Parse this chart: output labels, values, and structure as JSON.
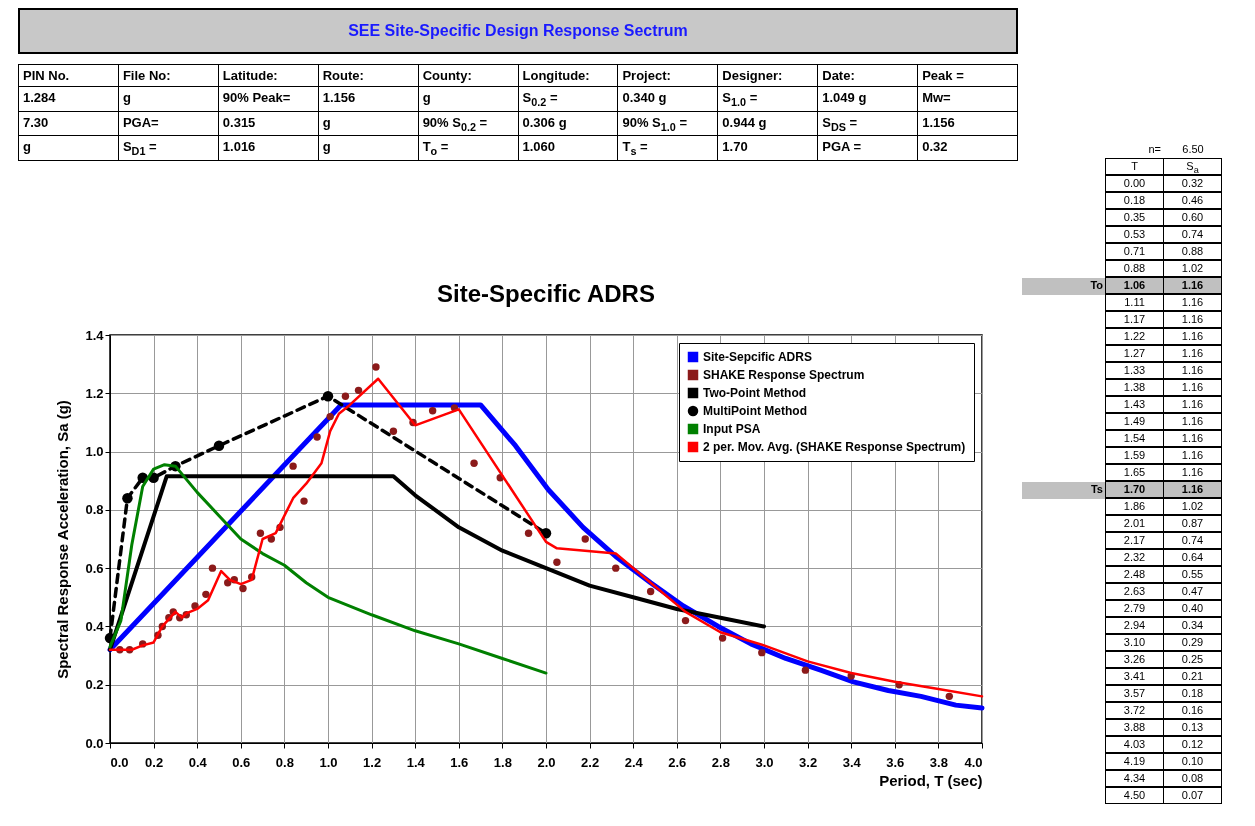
{
  "chart_data": [
    {
      "type": "other",
      "title": "SEE Site-Specific Design Response Sectrum",
      "annotations": [
        "PIN No.",
        "File No:",
        "Latitude:",
        "Route:",
        "County:",
        "Longitude:",
        "Project:",
        "Designer:",
        "Date:",
        "Peak =",
        "1.284",
        "g",
        "90% Peak=",
        "1.156",
        "g",
        "S$_{0.2}$ =",
        "0.340 g",
        "S$_{1.0}$ =",
        "1.049 g",
        "Mw=",
        "7.30",
        "PGA=",
        "0.315",
        "g",
        "90% S$_{0.2}$ =",
        "0.306 g",
        "90% S$_{1.0}$ =",
        "0.944 g",
        "S$_{DS}$ =",
        "1.156",
        "g",
        "S$_{D1}$ =",
        "1.016",
        "g",
        "T$_{o}$ =",
        "1.060",
        "T$_{s}$ =",
        "1.70",
        "PGA =",
        "0.32"
      ]
    },
    {
      "type": "line",
      "title": "Site-Specific ADRS",
      "xlabel": "Period, T (sec)",
      "ylabel": "Spectral Response Acceleration, Sa (g)",
      "xlim": [
        0,
        4
      ],
      "ylim": [
        0,
        1.4
      ],
      "xticks": [
        {
          "value": 0,
          "label": "0.0"
        },
        0.2,
        0.4,
        0.6,
        0.8,
        {
          "value": 1,
          "label": "1.0"
        },
        1.2,
        1.4,
        1.6,
        1.8,
        {
          "value": 2,
          "label": "2.0"
        },
        2.2,
        2.4,
        2.6,
        2.8,
        {
          "value": 3,
          "label": "3.0"
        },
        3.2,
        3.4,
        3.6,
        3.8,
        {
          "value": 4,
          "label": "4.0"
        }
      ],
      "yticks": [
        {
          "value": 0,
          "label": "0.0"
        },
        0.2,
        0.4,
        0.6,
        0.8,
        {
          "value": 1,
          "label": "1.0"
        },
        1.2,
        1.4
      ],
      "grid": true,
      "legend": "top right",
      "series": [
        {
          "name": "Site-Sepcific ADRS",
          "color": "#0000ff",
          "x": [
            0,
            1.06,
            1.7,
            1.86,
            2.01,
            2.17,
            2.32,
            2.48,
            2.63,
            2.79,
            2.94,
            3.1,
            3.26,
            3.41,
            3.57,
            3.72,
            3.88,
            4.0
          ],
          "values": [
            0.32,
            1.16,
            1.16,
            1.02,
            0.87,
            0.74,
            0.64,
            0.55,
            0.47,
            0.4,
            0.34,
            0.29,
            0.25,
            0.21,
            0.18,
            0.16,
            0.13,
            0.12
          ]
        },
        {
          "name": "SHAKE Response Spectrum",
          "type": "scatter",
          "marker": "circle",
          "color": "#8b1a1a",
          "x": [
            0.045,
            0.09,
            0.15,
            0.22,
            0.24,
            0.27,
            0.29,
            0.32,
            0.35,
            0.39,
            0.44,
            0.47,
            0.54,
            0.57,
            0.61,
            0.65,
            0.69,
            0.74,
            0.78,
            0.84,
            0.89,
            0.95,
            1.01,
            1.08,
            1.14,
            1.22,
            1.3,
            1.39,
            1.48,
            1.58,
            1.67,
            1.79,
            1.92,
            2.05,
            2.18,
            2.32,
            2.48,
            2.64,
            2.81,
            2.99,
            3.19,
            3.4,
            3.62,
            3.85
          ],
          "values": [
            0.32,
            0.32,
            0.34,
            0.37,
            0.4,
            0.43,
            0.45,
            0.43,
            0.44,
            0.47,
            0.51,
            0.6,
            0.55,
            0.56,
            0.53,
            0.57,
            0.72,
            0.7,
            0.74,
            0.95,
            0.83,
            1.05,
            1.12,
            1.19,
            1.21,
            1.29,
            1.07,
            1.1,
            1.14,
            1.15,
            0.96,
            0.91,
            0.72,
            0.62,
            0.7,
            0.6,
            0.52,
            0.42,
            0.36,
            0.31,
            0.25,
            0.23,
            0.2,
            0.16
          ]
        },
        {
          "name": "Two-Point Method",
          "color": "#000000",
          "x": [
            0,
            0.26,
            1.3,
            1.4,
            1.6,
            1.8,
            2.0,
            2.2,
            2.4,
            2.6,
            2.8,
            3.0
          ],
          "values": [
            0.32,
            0.915,
            0.915,
            0.85,
            0.74,
            0.66,
            0.6,
            0.54,
            0.5,
            0.46,
            0.43,
            0.4
          ]
        },
        {
          "name": "MultiPoint Method",
          "color": "#000000",
          "line_style": "dashed",
          "marker": "circle",
          "x": [
            0,
            0.08,
            0.15,
            0.2,
            0.3,
            0.5,
            1.0,
            2.0
          ],
          "values": [
            0.36,
            0.84,
            0.91,
            0.91,
            0.95,
            1.02,
            1.19,
            0.72
          ]
        },
        {
          "name": "Input PSA",
          "color": "#008000",
          "x": [
            0,
            0.05,
            0.1,
            0.15,
            0.2,
            0.25,
            0.3,
            0.4,
            0.5,
            0.6,
            0.7,
            0.8,
            0.9,
            1.0,
            1.2,
            1.4,
            1.6,
            1.8,
            2.0
          ],
          "values": [
            0.33,
            0.42,
            0.68,
            0.88,
            0.94,
            0.955,
            0.95,
            0.86,
            0.78,
            0.7,
            0.65,
            0.61,
            0.55,
            0.5,
            0.44,
            0.385,
            0.34,
            0.29,
            0.24
          ]
        },
        {
          "name": "2 per. Mov. Avg. (SHAKE Response Spectrum)",
          "color": "#ff0000",
          "x": [
            0,
            0.1,
            0.15,
            0.2,
            0.24,
            0.3,
            0.33,
            0.35,
            0.4,
            0.45,
            0.51,
            0.55,
            0.6,
            0.65,
            0.7,
            0.76,
            0.84,
            0.9,
            0.97,
            1.01,
            1.05,
            1.1,
            1.23,
            1.4,
            1.6,
            2.0,
            2.05,
            2.32,
            2.48,
            2.64,
            2.8,
            3.0,
            3.2,
            3.4,
            3.6,
            3.8,
            4.0
          ],
          "values": [
            0.32,
            0.32,
            0.335,
            0.345,
            0.4,
            0.45,
            0.43,
            0.445,
            0.46,
            0.49,
            0.59,
            0.56,
            0.545,
            0.56,
            0.7,
            0.72,
            0.84,
            0.89,
            0.96,
            1.07,
            1.13,
            1.16,
            1.25,
            1.09,
            1.145,
            0.69,
            0.668,
            0.65,
            0.55,
            0.45,
            0.38,
            0.335,
            0.28,
            0.24,
            0.21,
            0.185,
            0.16
          ]
        }
      ]
    },
    {
      "type": "other",
      "annotations": [
        "n=",
        "6.50",
        "T",
        "S$_{a}$",
        "0.00",
        "0.32",
        "0.18",
        "0.46",
        "0.35",
        "0.60",
        "0.53",
        "0.74",
        "0.71",
        "0.88",
        "0.88",
        "1.02",
        "To",
        "1.06",
        "1.16",
        "1.11",
        "1.16",
        "1.17",
        "1.16",
        "1.22",
        "1.16",
        "1.27",
        "1.16",
        "1.33",
        "1.16",
        "1.38",
        "1.16",
        "1.43",
        "1.16",
        "1.49",
        "1.16",
        "1.54",
        "1.16",
        "1.59",
        "1.16",
        "1.65",
        "1.16",
        "Ts",
        "1.70",
        "1.16",
        "1.86",
        "1.02",
        "2.01",
        "0.87",
        "2.17",
        "0.74",
        "2.32",
        "0.64",
        "2.48",
        "0.55",
        "2.63",
        "0.47",
        "2.79",
        "0.40",
        "2.94",
        "0.34",
        "3.10",
        "0.29",
        "3.26",
        "0.25",
        "3.41",
        "0.21",
        "3.57",
        "0.18",
        "3.72",
        "0.16",
        "3.88",
        "0.13",
        "4.03",
        "0.12",
        "4.19",
        "0.10",
        "4.34",
        "0.08",
        "4.50",
        "0.07"
      ]
    }
  ]
}
